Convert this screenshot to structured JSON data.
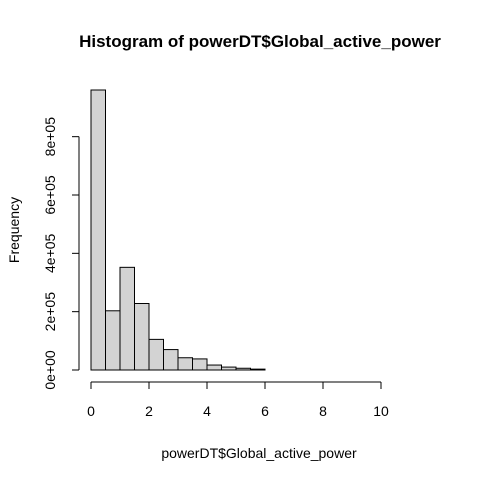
{
  "chart_data": {
    "type": "bar",
    "title": "Histogram of powerDT$Global_active_power",
    "xlabel": "powerDT$Global_active_power",
    "ylabel": "Frequency",
    "bin_width": 0.5,
    "bins_start": [
      0,
      0.5,
      1,
      1.5,
      2,
      2.5,
      3,
      3.5,
      4,
      4.5,
      5,
      5.5,
      6,
      6.5,
      7,
      7.5,
      8,
      8.5,
      9,
      9.5,
      10,
      10.5,
      11
    ],
    "values": [
      960000,
      203000,
      352000,
      228000,
      105000,
      70000,
      42000,
      38000,
      17000,
      10000,
      6000,
      3000,
      1000,
      600,
      300,
      200,
      100,
      60,
      40,
      20,
      10,
      5,
      2
    ],
    "xlim": [
      0,
      11.5
    ],
    "ylim": [
      0,
      960000
    ],
    "x_ticks": [
      "0",
      "2",
      "4",
      "6",
      "8",
      "10"
    ],
    "y_ticks": [
      "0e+00",
      "2e+05",
      "4e+05",
      "6e+05",
      "8e+05"
    ],
    "bar_fill": "#d3d3d3",
    "bar_stroke": "#000000",
    "grid": false,
    "legend": "none"
  }
}
